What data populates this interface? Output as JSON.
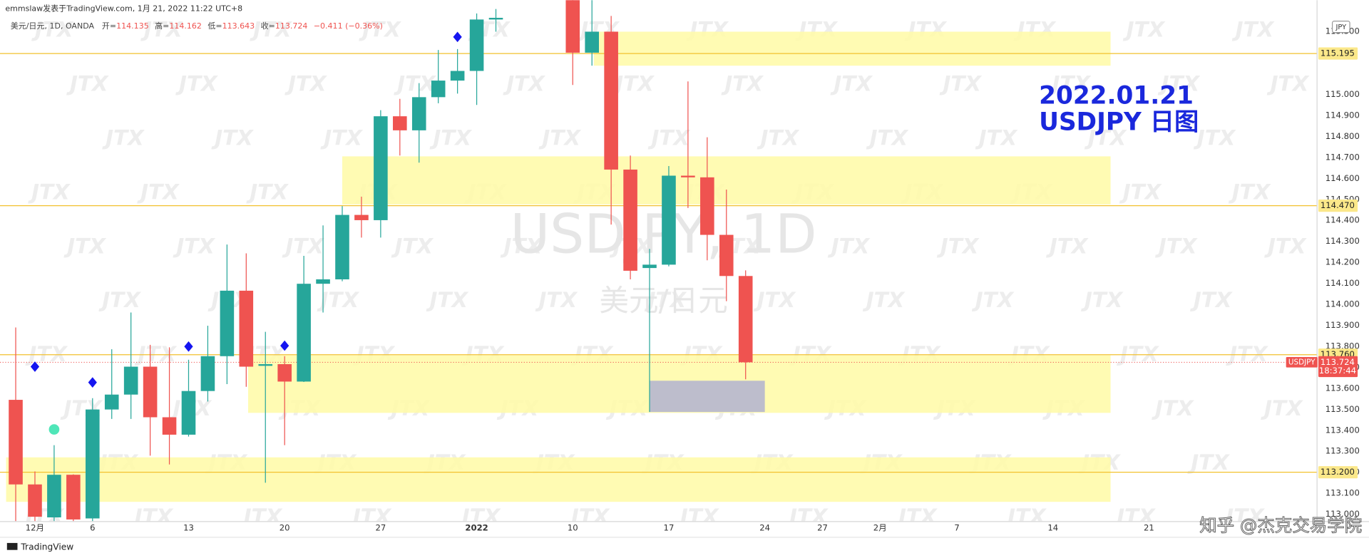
{
  "header": {
    "byline": "emmslaw发表于TradingView.com, 1月 21, 2022 11:22 UTC+8",
    "symbol_line": "美元/日元, 1D, OANDA",
    "ohlc": [
      {
        "label": "开=",
        "value": 114.135
      },
      {
        "label": "高=",
        "value": 114.162
      },
      {
        "label": "低=",
        "value": 113.643
      },
      {
        "label": "收=",
        "value": 113.724
      }
    ],
    "change": "−0.411 (−0.36%)"
  },
  "footer": {
    "brand": "TradingView",
    "credit": "知乎 @杰克交易学院"
  },
  "chart_data": {
    "type": "candlestick",
    "symbol": "USDJPY",
    "currency": "JPY",
    "countdown": "18:37:44",
    "watermark": "JTX",
    "watermark_title": "USDJPY, 1D",
    "watermark_subtitle": "美元/日元",
    "annotation": [
      "2022.01.21",
      "USDJPY 日图"
    ],
    "up_color": "#26a69a",
    "down_color": "#ef5350",
    "level_color": "#f2c12e",
    "zone_color": "#fffaa6",
    "box_color": "#bdbdcc",
    "marker_color": "#1515f0",
    "dot_color": "#4fe6b8",
    "annotation_color": "#1a28dc",
    "grid": false,
    "categories": [
      null,
      "12月",
      null,
      null,
      "6",
      null,
      null,
      null,
      null,
      "13",
      null,
      null,
      null,
      null,
      "20",
      null,
      null,
      null,
      null,
      "27",
      null,
      null,
      null,
      null,
      "2022",
      null,
      null,
      null,
      null,
      "10",
      null,
      null,
      null,
      null,
      "17",
      null,
      null,
      null,
      null,
      "24",
      null,
      null,
      "27",
      null,
      null,
      "2月",
      null,
      null,
      null,
      "7",
      null,
      null,
      null,
      null,
      "14",
      null,
      null,
      null,
      null,
      "21",
      null,
      null,
      null,
      null,
      null,
      null,
      null,
      null
    ],
    "open": [
      113.545,
      113.142,
      112.985,
      113.188,
      112.98,
      113.499,
      113.57,
      113.703,
      113.462,
      113.379,
      113.587,
      113.753,
      114.065,
      113.707,
      113.715,
      113.632,
      114.098,
      114.119,
      114.426,
      114.401,
      114.896,
      114.829,
      114.987,
      115.066,
      115.112,
      115.357,
      null,
      null,
      null,
      115.48,
      115.199,
      115.299,
      114.642,
      114.173,
      114.189,
      114.613,
      114.605,
      114.331,
      114.135,
      null,
      null,
      null,
      null,
      null,
      null,
      null,
      null,
      null,
      null,
      null,
      null,
      null,
      null,
      null,
      null,
      null,
      null,
      null,
      null,
      null,
      null,
      null,
      null,
      null,
      null,
      null,
      null,
      null
    ],
    "high": [
      113.89,
      113.204,
      113.329,
      113.19,
      113.553,
      113.786,
      113.961,
      113.807,
      113.795,
      113.736,
      113.898,
      114.285,
      114.243,
      113.869,
      113.753,
      114.231,
      114.376,
      114.468,
      114.513,
      114.925,
      114.979,
      115.054,
      115.212,
      115.216,
      115.386,
      115.407,
      null,
      null,
      null,
      115.6,
      115.45,
      115.374,
      114.709,
      114.264,
      114.659,
      115.062,
      114.796,
      114.547,
      114.162,
      null,
      null,
      null,
      null,
      null,
      null,
      null,
      null,
      null,
      null,
      null,
      null,
      null,
      null,
      null,
      null,
      null,
      null,
      null,
      null,
      null,
      null,
      null,
      null,
      null,
      null,
      null,
      null,
      null
    ],
    "low": [
      112.95,
      112.95,
      112.95,
      112.95,
      112.95,
      113.454,
      113.454,
      113.279,
      113.237,
      113.37,
      113.537,
      113.62,
      113.607,
      113.15,
      113.329,
      113.63,
      113.961,
      114.11,
      114.318,
      114.318,
      114.709,
      114.675,
      114.958,
      115.004,
      114.95,
      115.299,
      null,
      null,
      null,
      115.045,
      115.137,
      114.38,
      114.119,
      113.487,
      114.181,
      114.459,
      114.21,
      114.015,
      113.643,
      null,
      null,
      null,
      null,
      null,
      null,
      null,
      null,
      null,
      null,
      null,
      null,
      null,
      null,
      null,
      null,
      null,
      null,
      null,
      null,
      null,
      null,
      null,
      null,
      null,
      null,
      null,
      null,
      null
    ],
    "close": [
      113.142,
      112.988,
      113.188,
      112.975,
      113.499,
      113.57,
      113.703,
      113.462,
      113.379,
      113.587,
      113.753,
      114.065,
      113.703,
      113.715,
      113.632,
      114.098,
      114.119,
      114.426,
      114.401,
      114.896,
      114.829,
      114.987,
      115.066,
      115.112,
      115.357,
      115.365,
      null,
      null,
      null,
      115.199,
      115.299,
      114.642,
      114.16,
      114.189,
      114.613,
      114.605,
      114.331,
      114.135,
      113.724,
      null,
      null,
      null,
      null,
      null,
      null,
      null,
      null,
      null,
      null,
      null,
      null,
      null,
      null,
      null,
      null,
      null,
      null,
      null,
      null,
      null,
      null,
      null,
      null,
      null,
      null,
      null,
      null,
      null
    ],
    "ylim": [
      112.967,
      115.449
    ],
    "yticks": [
      {
        "value": 113,
        "label": "113.000"
      },
      {
        "value": 113.1,
        "label": "113.100"
      },
      {
        "value": 113.2,
        "label": "113.200"
      },
      {
        "value": 113.3,
        "label": "113.300"
      },
      {
        "value": 113.4,
        "label": "113.400"
      },
      {
        "value": 113.5,
        "label": "113.500"
      },
      {
        "value": 113.6,
        "label": "113.600"
      },
      {
        "value": 113.7,
        "label": "113.700"
      },
      {
        "value": 113.8,
        "label": "113.800"
      },
      {
        "value": 113.9,
        "label": "113.900"
      },
      {
        "value": 114,
        "label": "114.000"
      },
      {
        "value": 114.1,
        "label": "114.100"
      },
      {
        "value": 114.2,
        "label": "114.200"
      },
      {
        "value": 114.3,
        "label": "114.300"
      },
      {
        "value": 114.4,
        "label": "114.400"
      },
      {
        "value": 114.5,
        "label": "114.500"
      },
      {
        "value": 114.6,
        "label": "114.600"
      },
      {
        "value": 114.7,
        "label": "114.700"
      },
      {
        "value": 114.8,
        "label": "114.800"
      },
      {
        "value": 114.9,
        "label": "114.900"
      },
      {
        "value": 115,
        "label": "115.000"
      },
      {
        "value": 115.3,
        "label": "115.300"
      }
    ],
    "levels": [
      115.195,
      {
        "value": 114.47,
        "label": "114.470"
      },
      {
        "value": 113.76,
        "label": "113.760"
      },
      {
        "value": 113.2,
        "label": "113.200"
      }
    ],
    "zones": [
      {
        "from": 115.137,
        "to": 115.299,
        "start": 30.6,
        "end": 57.5
      },
      {
        "from": 114.476,
        "to": 114.705,
        "start": 17.5,
        "end": 57.5
      },
      {
        "from": 113.483,
        "to": 113.757,
        "start": 12.6,
        "end": 57.5
      },
      {
        "from": 113.059,
        "to": 113.271,
        "start": 0,
        "end": 57.5
      }
    ],
    "box": {
      "from": 113.487,
      "to": 113.636,
      "start": 33.5,
      "end": 39.5
    },
    "markers": [
      {
        "at": 1,
        "price": 113.703
      },
      {
        "at": 4,
        "price": 113.628
      },
      {
        "at": 9,
        "price": 113.799
      },
      {
        "at": 14,
        "price": 113.803
      },
      {
        "at": 23,
        "price": 115.274
      }
    ],
    "dots": [
      {
        "at": 2,
        "price": 113.404
      }
    ]
  }
}
